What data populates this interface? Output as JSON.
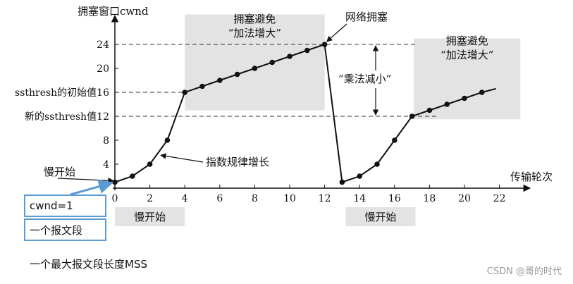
{
  "chart_data": {
    "type": "line",
    "ylabel": "拥塞窗口cwnd",
    "xlabel": "传输轮次",
    "xlim": [
      0,
      22
    ],
    "ylim": [
      0,
      24
    ],
    "xticks": [
      0,
      2,
      4,
      6,
      8,
      10,
      12,
      14,
      16,
      18,
      20,
      22
    ],
    "yticks": [
      4,
      8,
      12,
      16,
      20,
      24
    ],
    "ytick_custom": [
      {
        "value": 16,
        "label": "ssthresh的初始值16"
      },
      {
        "value": 12,
        "label": "新的ssthresh值12"
      }
    ],
    "series": [
      {
        "x": [
          0,
          1,
          2,
          3,
          4,
          5,
          6,
          7,
          8,
          9,
          10,
          11,
          12
        ],
        "y": [
          1,
          2,
          4,
          8,
          16,
          17,
          18,
          19,
          20,
          21,
          22,
          23,
          24
        ]
      },
      {
        "x": [
          13,
          14,
          15,
          16,
          17,
          18,
          19,
          20,
          21,
          21.8
        ],
        "y": [
          1,
          2,
          4,
          8,
          12,
          13,
          14,
          15,
          16,
          16.6
        ],
        "markers": [
          true,
          true,
          true,
          true,
          true,
          true,
          true,
          true,
          true,
          false
        ]
      }
    ],
    "regions": [
      {
        "label_line1": "拥塞避免",
        "label_line2": "“加法增大”",
        "x": [
          4,
          12
        ],
        "y": [
          13,
          29
        ]
      },
      {
        "label_line1": "拥塞避免",
        "label_line2": "“加法增大”",
        "x": [
          17.1,
          23.2
        ],
        "y": [
          11.5,
          25
        ]
      },
      {
        "label": "慢开始",
        "x": [
          0,
          4
        ]
      },
      {
        "label": "慢开始",
        "x": [
          13.2,
          17.2
        ]
      }
    ],
    "annotations": {
      "congestion": "网络拥塞",
      "multiplicative": "“乘法减小”",
      "exponential": "指数规律增长",
      "slow_start_left": "慢开始"
    }
  },
  "notes": {
    "cwnd_box": "cwnd=1",
    "segment_box": "一个报文段",
    "mss_text": "一个最大报文段长度MSS"
  },
  "watermark": "CSDN @哥的时代"
}
